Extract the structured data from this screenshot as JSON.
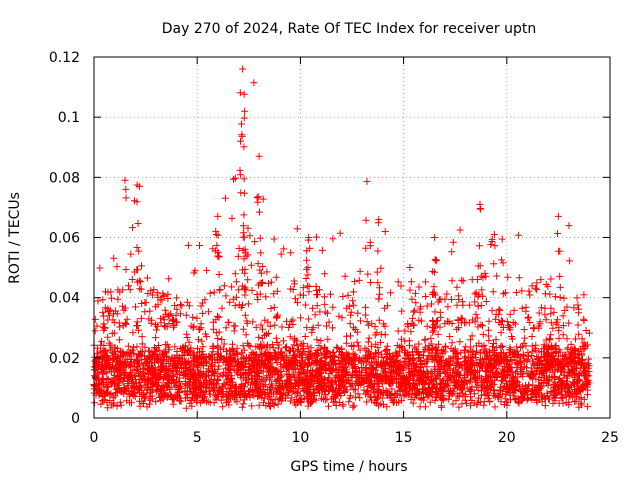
{
  "chart_data": {
    "type": "scatter",
    "title": "Day 270 of 2024, Rate Of TEC Index for receiver uptn",
    "xlabel": "GPS time / hours",
    "ylabel": "ROTI / TECUs",
    "xlim": [
      0,
      25
    ],
    "ylim": [
      0,
      0.12
    ],
    "xticks": [
      0,
      5,
      10,
      15,
      20,
      25
    ],
    "xtick_labels": [
      "0",
      "5",
      "10",
      "15",
      "20",
      "25"
    ],
    "yticks": [
      0,
      0.02,
      0.04,
      0.06,
      0.08,
      0.1,
      0.12
    ],
    "ytick_labels": [
      "0",
      "0.02",
      "0.04",
      "0.06",
      "0.08",
      "0.1",
      "0.12"
    ],
    "grid": true,
    "marker": "plus",
    "series_color": "#ff0000",
    "series": [
      {
        "name": "ROTI",
        "x_range": [
          0,
          24
        ],
        "typical_band": [
          0.005,
          0.025
        ],
        "notable_peaks": [
          {
            "x": 7.2,
            "y": 0.116
          },
          {
            "x": 7.3,
            "y": 0.102
          },
          {
            "x": 7.1,
            "y": 0.092
          },
          {
            "x": 8.0,
            "y": 0.087
          },
          {
            "x": 1.5,
            "y": 0.079
          },
          {
            "x": 2.2,
            "y": 0.077
          },
          {
            "x": 18.7,
            "y": 0.071
          },
          {
            "x": 22.5,
            "y": 0.067
          },
          {
            "x": 6.0,
            "y": 0.067
          },
          {
            "x": 13.8,
            "y": 0.066
          },
          {
            "x": 19.4,
            "y": 0.061
          },
          {
            "x": 10.4,
            "y": 0.06
          },
          {
            "x": 16.5,
            "y": 0.06
          }
        ]
      }
    ]
  }
}
